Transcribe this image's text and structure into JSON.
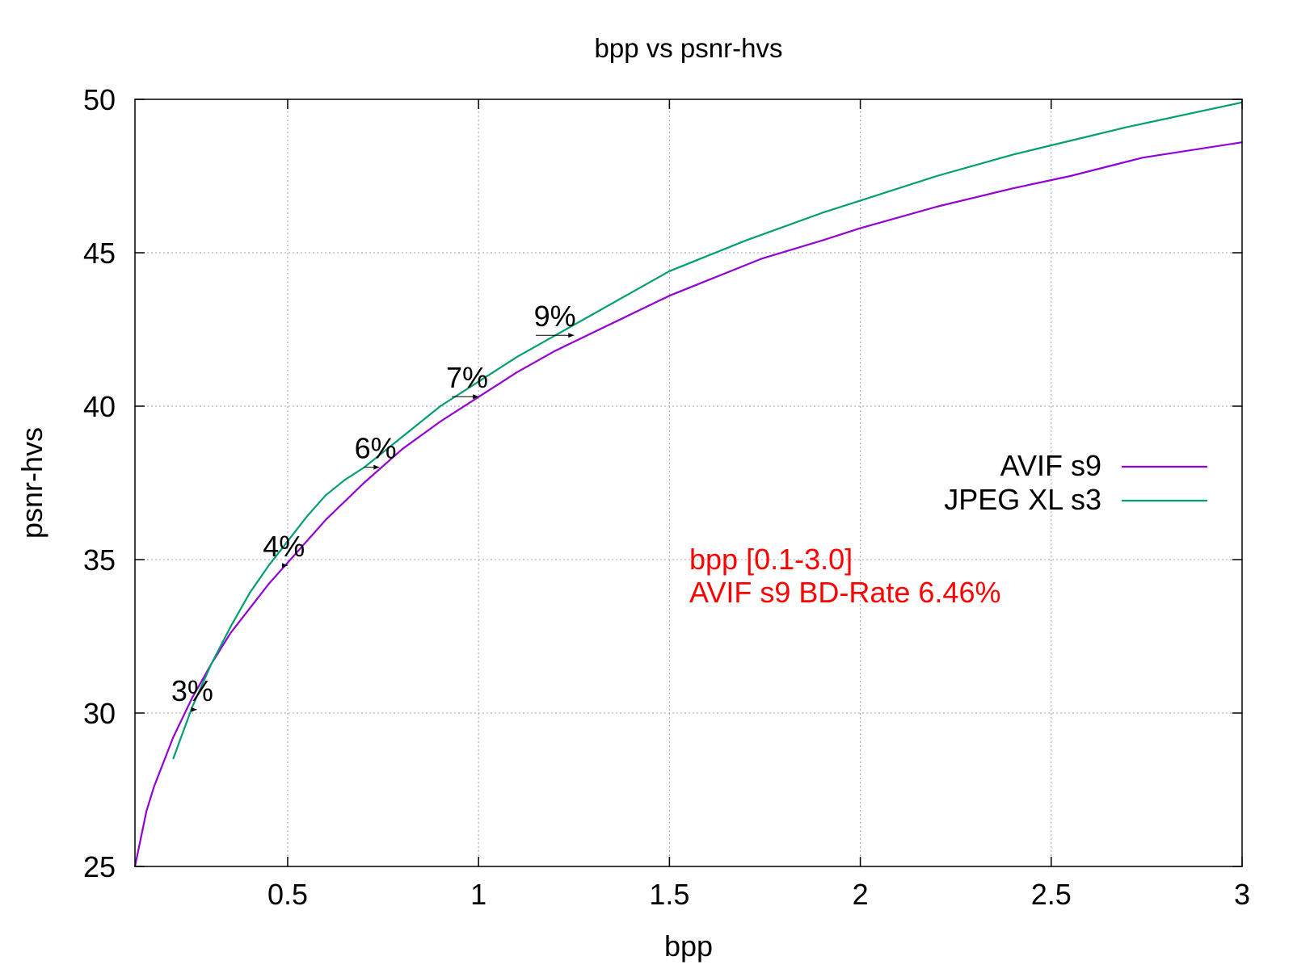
{
  "chart_data": {
    "type": "line",
    "title": "bpp vs psnr-hvs",
    "xlabel": "bpp",
    "ylabel": "psnr-hvs",
    "xlim": [
      0.1,
      3
    ],
    "ylim": [
      25,
      50
    ],
    "x_ticks": [
      0.5,
      1,
      1.5,
      2,
      2.5,
      3
    ],
    "x_tick_labels": [
      "0.5",
      "1",
      "1.5",
      "2",
      "2.5",
      "3"
    ],
    "y_ticks": [
      25,
      30,
      35,
      40,
      45,
      50
    ],
    "y_tick_labels": [
      "25",
      "30",
      "35",
      "40",
      "45",
      "50"
    ],
    "grid": true,
    "legend_position": "right",
    "series": [
      {
        "name": "AVIF s9",
        "color": "#9400d3",
        "x": [
          0.1,
          0.13,
          0.15,
          0.2,
          0.25,
          0.3,
          0.35,
          0.4,
          0.45,
          0.5,
          0.55,
          0.6,
          0.7,
          0.8,
          0.9,
          1.0,
          1.1,
          1.2,
          1.3,
          1.4,
          1.5,
          1.6,
          1.74,
          1.9,
          2.0,
          2.2,
          2.4,
          2.55,
          2.74,
          3.0
        ],
        "y": [
          25.0,
          26.8,
          27.6,
          29.2,
          30.5,
          31.6,
          32.6,
          33.4,
          34.2,
          34.9,
          35.6,
          36.3,
          37.5,
          38.6,
          39.5,
          40.3,
          41.1,
          41.8,
          42.4,
          43.0,
          43.6,
          44.1,
          44.8,
          45.4,
          45.8,
          46.5,
          47.1,
          47.5,
          48.1,
          48.6
        ]
      },
      {
        "name": "JPEG XL s3",
        "color": "#009e73",
        "x": [
          0.2,
          0.25,
          0.3,
          0.35,
          0.4,
          0.45,
          0.5,
          0.55,
          0.6,
          0.65,
          0.7,
          0.8,
          0.9,
          1.0,
          1.1,
          1.2,
          1.3,
          1.4,
          1.5,
          1.6,
          1.7,
          1.9,
          2.0,
          2.2,
          2.4,
          2.5,
          2.7,
          3.0
        ],
        "y": [
          28.5,
          30.2,
          31.6,
          32.8,
          33.9,
          34.8,
          35.6,
          36.4,
          37.1,
          37.6,
          38.0,
          39.0,
          40.0,
          40.8,
          41.6,
          42.3,
          43.0,
          43.7,
          44.4,
          44.9,
          45.4,
          46.3,
          46.7,
          47.5,
          48.2,
          48.5,
          49.1,
          49.9
        ]
      }
    ],
    "annotations": [
      {
        "text": "3%",
        "x": 0.25,
        "y": 30.4,
        "arrow_from_x": 0.25,
        "arrow_to_x": 0.262
      },
      {
        "text": "4%",
        "x": 0.49,
        "y": 35.1,
        "arrow_from_x": 0.485,
        "arrow_to_x": 0.5
      },
      {
        "text": "6%",
        "x": 0.73,
        "y": 38.3,
        "arrow_from_x": 0.7,
        "arrow_to_x": 0.74
      },
      {
        "text": "7%",
        "x": 0.97,
        "y": 40.6,
        "arrow_from_x": 0.93,
        "arrow_to_x": 1.0
      },
      {
        "text": "9%",
        "x": 1.2,
        "y": 42.6,
        "arrow_from_x": 1.15,
        "arrow_to_x": 1.25
      }
    ],
    "info_text": [
      "bpp [0.1-3.0]",
      "AVIF s9 BD-Rate 6.46%"
    ],
    "info_color": "#ff0000"
  }
}
